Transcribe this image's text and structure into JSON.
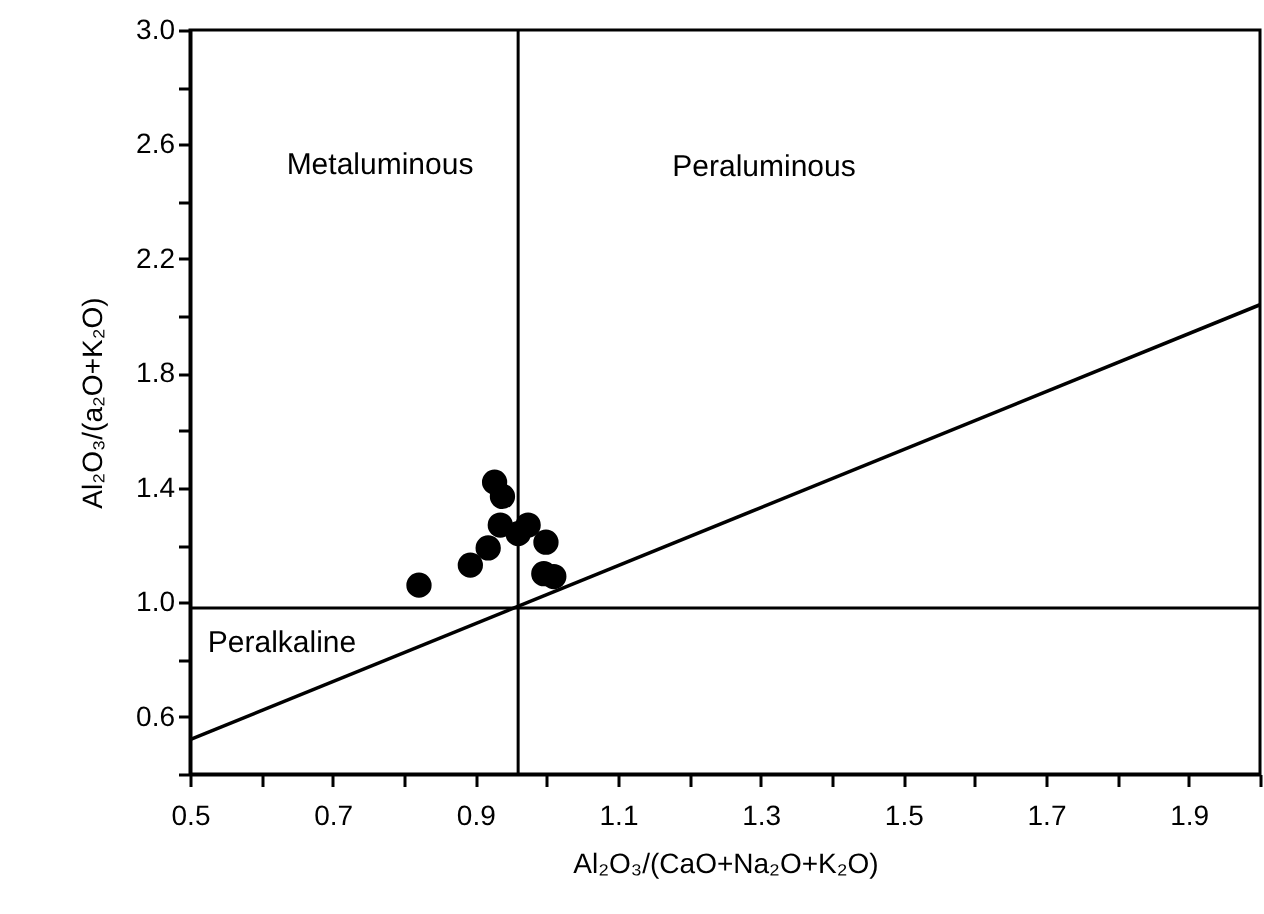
{
  "chart_data": {
    "type": "scatter",
    "xlabel": "Al₂O₃/(CaO+Na₂O+K₂O)",
    "ylabel": "Al₂O₃/(a₂O+K₂O)",
    "annotations": [
      "Metaluminous",
      "Peraluminous",
      "Peralkaline"
    ],
    "series": [
      {
        "type": "scatter",
        "marker": "circle",
        "color": "#000000",
        "x": [
          0.927,
          0.938,
          0.935,
          0.974,
          0.96,
          0.918,
          0.999,
          0.893,
          0.996,
          1.01,
          0.821
        ],
        "values": [
          1.42,
          1.37,
          1.27,
          1.27,
          1.24,
          1.19,
          1.21,
          1.13,
          1.1,
          1.09,
          1.06
        ]
      },
      {
        "type": "line",
        "color": "#000000",
        "x": [
          0.5,
          2.0
        ],
        "values": [
          0.52,
          2.04
        ]
      }
    ],
    "ref_lines": [
      {
        "axis": "x",
        "value": 0.96
      },
      {
        "axis": "y",
        "value": 0.98
      }
    ],
    "line_style": "solid",
    "grid": false,
    "xlim": [
      0.5,
      2.0
    ],
    "xticks": [
      0.5,
      {
        "value": 0.6,
        "label": null
      },
      0.7,
      {
        "value": 0.8,
        "label": null
      },
      0.9,
      {
        "value": 1.0,
        "label": null
      },
      1.1,
      {
        "value": 1.2,
        "label": null
      },
      1.3,
      {
        "value": 1.4,
        "label": null
      },
      1.5,
      {
        "value": 1.6,
        "label": null
      },
      1.7,
      {
        "value": 1.8,
        "label": null
      },
      1.9,
      {
        "value": 2.0,
        "label": null
      }
    ],
    "ylim": [
      0.4,
      3.0
    ],
    "yticks": [
      {
        "value": 0.4,
        "label": null
      },
      0.6,
      {
        "value": 0.8,
        "label": null
      },
      {
        "value": 1.0,
        "label": "1.0"
      },
      {
        "value": 1.2,
        "label": null
      },
      1.4,
      {
        "value": 1.6,
        "label": null
      },
      1.8,
      {
        "value": 2.0,
        "label": null
      },
      2.2,
      {
        "value": 2.4,
        "label": null
      },
      2.6,
      {
        "value": 2.8,
        "label": null
      },
      {
        "value": 3.0,
        "label": "3.0"
      }
    ]
  }
}
